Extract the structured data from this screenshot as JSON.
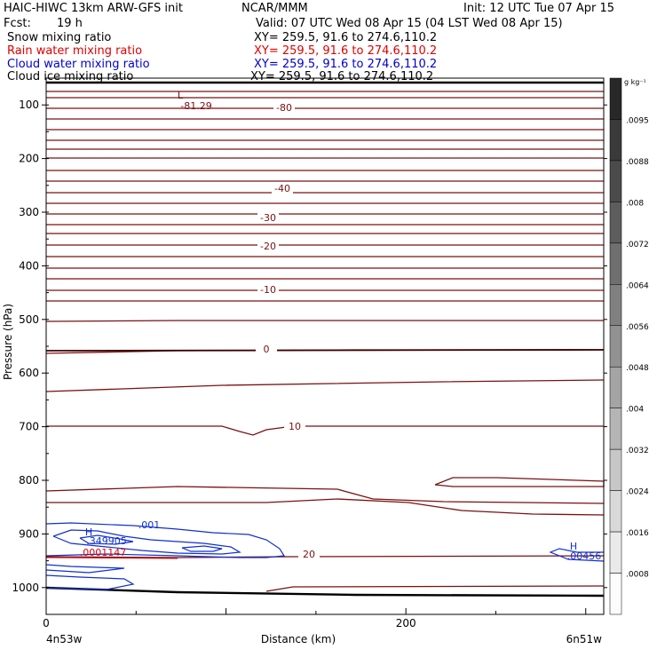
{
  "header": {
    "model": "HAIC-HIWC 13km ARW-GFS init",
    "center": "NCAR/MMM",
    "init": "Init: 12 UTC Tue 07 Apr 15",
    "fcst_label": "Fcst:",
    "fcst_value": "19 h",
    "valid": "Valid: 07 UTC Wed 08 Apr 15 (04 LST Wed 08 Apr 15)"
  },
  "fields": [
    {
      "name": "Snow mixing ratio",
      "xy": "XY= 259.5, 91.6 to 274.6,110.2",
      "color": "#000000"
    },
    {
      "name": "Rain water mixing ratio",
      "xy": "XY= 259.5, 91.6 to 274.6,110.2",
      "color": "#e00000"
    },
    {
      "name": "Cloud water mixing ratio",
      "xy": "XY= 259.5, 91.6 to 274.6,110.2",
      "color": "#0000d0"
    },
    {
      "name": "Cloud ice mixing ratio",
      "xy": "XY= 259.5, 91.6 to 274.6,110.2",
      "color": "#000000"
    }
  ],
  "chart_data": {
    "type": "line",
    "subtype": "cross-section contour",
    "ylabel": "Pressure (hPa)",
    "xlabel": "Distance (km)",
    "x_ticks": [
      0,
      200
    ],
    "x_range_km": [
      0,
      310
    ],
    "y_ticks": [
      100,
      200,
      300,
      400,
      500,
      600,
      700,
      800,
      900,
      1000
    ],
    "y_range_hpa": [
      50,
      1050
    ],
    "left_endpoint": "4n53w",
    "right_endpoint": "6n51w",
    "temperature_contour_labels": [
      "-80",
      "-40",
      "-30",
      "-20",
      "-10",
      "0",
      "10",
      "20"
    ],
    "temperature_color": "#7a1010",
    "extrema": {
      "low_marker": "L",
      "low_value": "-81.29",
      "high_marker": "H",
      "cloud_high_values": [
        ".349905",
        ".00456"
      ],
      "cloud_contour_label": ".001",
      "rain_value": ".0001147"
    },
    "colorbar": {
      "unit": "g kg⁻¹",
      "labels": [
        ".0095",
        ".0088",
        ".008",
        ".0072",
        ".0064",
        ".0056",
        ".0048",
        ".004",
        ".0032",
        ".0024",
        ".0016",
        ".0008"
      ]
    }
  }
}
